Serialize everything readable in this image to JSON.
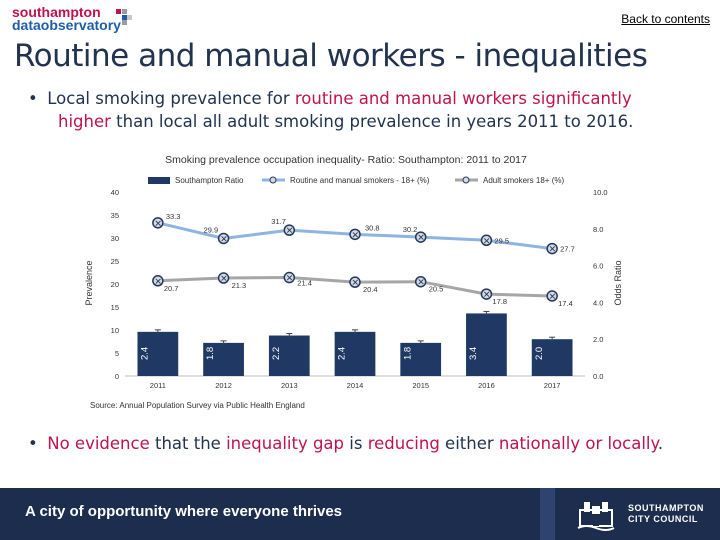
{
  "header": {
    "logo_line1": "southampton",
    "logo_line2": "dataobservatory",
    "back_link": "Back to contents"
  },
  "page_title": "Routine and manual workers - inequalities",
  "bullet1": {
    "part1": "Local smoking prevalence for ",
    "hl1": "routine and manual workers significantly",
    "hl2": "higher",
    "part2": " than local all adult smoking prevalence in years 2011 to 2016."
  },
  "bullet2": {
    "hl1": "No evidence",
    "p1": " that the ",
    "hl2": "inequality gap",
    "p2": " is ",
    "hl3": "reducing",
    "p3": " either ",
    "hl4": "nationally or locally",
    "p4": "."
  },
  "colors": {
    "accent": "#c0134c",
    "navy": "#1c2d4d",
    "bar": "#1f3864",
    "line_routine": "#8eb4e3",
    "line_adult": "#a6a6a6"
  },
  "chart_data": {
    "type": "bar+line",
    "title": "Smoking prevalence occupation inequality- Ratio: Southampton: 2011 to 2017",
    "categories": [
      "2011",
      "2012",
      "2013",
      "2014",
      "2015",
      "2016",
      "2017"
    ],
    "series": [
      {
        "name": "Southampton Ratio",
        "kind": "bar",
        "axis": "right",
        "values": [
          2.4,
          1.8,
          2.2,
          2.4,
          1.8,
          3.4,
          2.0
        ]
      },
      {
        "name": "Routine and manual smokers - 18+ (%)",
        "kind": "line",
        "axis": "left",
        "values": [
          33.3,
          29.9,
          31.7,
          30.8,
          30.2,
          29.5,
          27.7
        ]
      },
      {
        "name": "Adult smokers 18+ (%)",
        "kind": "line",
        "axis": "left",
        "values": [
          20.7,
          21.3,
          21.4,
          20.4,
          20.5,
          17.8,
          17.4
        ]
      }
    ],
    "bar_labels": [
      "2.4",
      "1.8",
      "2.2",
      "2.4",
      "1.8",
      "3.4",
      "2.0"
    ],
    "line1_labels": [
      "33.3",
      "29.9",
      "31.7",
      "30.8",
      "30.2",
      "29.5",
      "27.7"
    ],
    "line2_labels": [
      "20.7",
      "21.3",
      "21.4",
      "20.4",
      "20.5",
      "17.8",
      "17.4"
    ],
    "ylabel_left": "Prevalence",
    "ylabel_right": "Odds Ratio",
    "ylim_left": [
      0,
      40
    ],
    "ylim_right": [
      0,
      10
    ],
    "yticks_left": [
      "0",
      "5",
      "10",
      "15",
      "20",
      "25",
      "30",
      "35",
      "40"
    ],
    "yticks_right": [
      "0.0",
      "2.0",
      "4.0",
      "6.0",
      "8.0",
      "10.0"
    ],
    "legend_position": "top",
    "grid": false,
    "source": "Source: Annual Population Survey via Public Health England"
  },
  "footer": {
    "tagline": "A city of opportunity where everyone thrives",
    "council_line1": "SOUTHAMPTON",
    "council_line2": "CITY COUNCIL"
  }
}
